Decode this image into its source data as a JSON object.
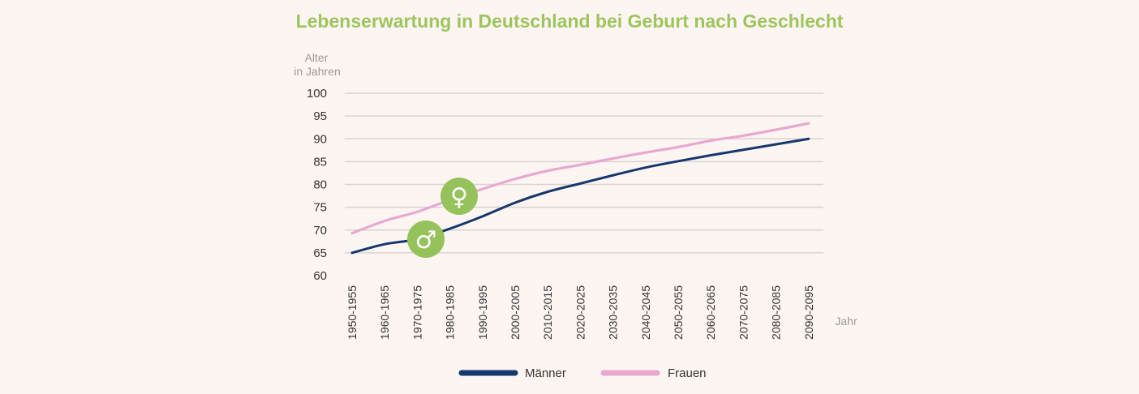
{
  "colors": {
    "title": "#9dc55d",
    "maenner": "#14386e",
    "frauen": "#e9a8d1",
    "badge": "#95c25b",
    "grid": "#d9d4d1"
  },
  "icons": {
    "male": "male-sign-icon",
    "female": "female-sign-icon"
  },
  "chart_data": {
    "type": "line",
    "title": "Lebenserwartung in Deutschland bei Geburt nach Geschlecht",
    "ylabel_line1": "Alter",
    "ylabel_line2": "in Jahren",
    "xlabel": "Jahr",
    "ylim": [
      60,
      100
    ],
    "yticks": [
      100,
      95,
      90,
      85,
      80,
      75,
      70,
      65,
      60
    ],
    "grid": true,
    "legend_position": "bottom",
    "categories": [
      "1950-1955",
      "1960-1965",
      "1970-1975",
      "1980-1985",
      "1990-1995",
      "2000-2005",
      "2010-2015",
      "2020-2025",
      "2030-2035",
      "2040-2045",
      "2050-2055",
      "2060-2065",
      "2070-2075",
      "2080-2085",
      "2090-2095"
    ],
    "series": [
      {
        "name": "Männer",
        "values": [
          65.0,
          66.9,
          68.0,
          70.3,
          73.0,
          76.0,
          78.4,
          80.2,
          82.0,
          83.7,
          85.1,
          86.4,
          87.6,
          88.8,
          90.0
        ]
      },
      {
        "name": "Frauen",
        "values": [
          69.3,
          72.0,
          74.0,
          76.6,
          79.0,
          81.2,
          83.0,
          84.3,
          85.7,
          87.0,
          88.2,
          89.6,
          90.7,
          92.0,
          93.4
        ]
      }
    ]
  }
}
